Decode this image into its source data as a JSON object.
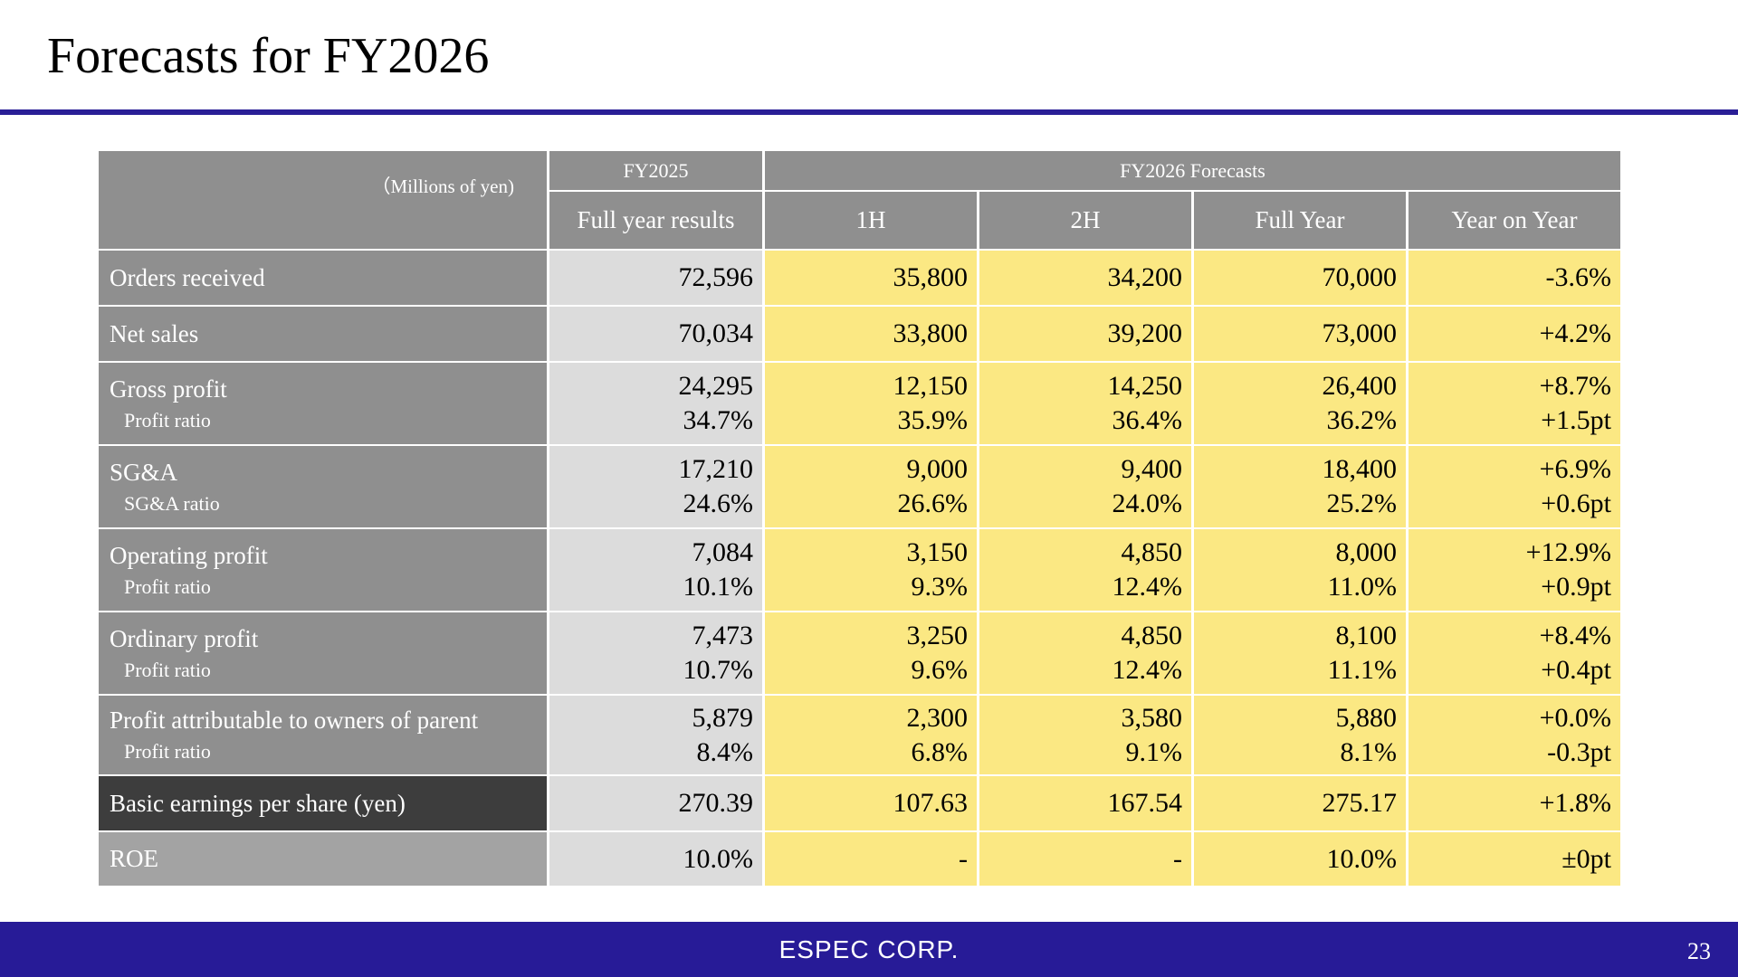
{
  "slide": {
    "title": "Forecasts for FY2026",
    "company": "ESPEC CORP.",
    "page_number": "23"
  },
  "table": {
    "unit_note": "（Millions of yen)",
    "group_headers": {
      "fy2025": "FY2025",
      "fy2026": "FY2026 Forecasts"
    },
    "column_headers": [
      "Full year results",
      "1H",
      "2H",
      "Full Year",
      "Year on Year"
    ],
    "rows": [
      {
        "label": "Orders received",
        "sub": "",
        "values": [
          "72,596",
          "35,800",
          "34,200",
          "70,000",
          "-3.6%"
        ],
        "sub_values": [
          "",
          "",
          "",
          "",
          ""
        ]
      },
      {
        "label": "Net sales",
        "sub": "",
        "values": [
          "70,034",
          "33,800",
          "39,200",
          "73,000",
          "+4.2%"
        ],
        "sub_values": [
          "",
          "",
          "",
          "",
          ""
        ]
      },
      {
        "label": "Gross profit",
        "sub": "Profit ratio",
        "values": [
          "24,295",
          "12,150",
          "14,250",
          "26,400",
          "+8.7%"
        ],
        "sub_values": [
          "34.7%",
          "35.9%",
          "36.4%",
          "36.2%",
          "+1.5pt"
        ]
      },
      {
        "label": "SG&A",
        "sub": "SG&A ratio",
        "values": [
          "17,210",
          "9,000",
          "9,400",
          "18,400",
          "+6.9%"
        ],
        "sub_values": [
          "24.6%",
          "26.6%",
          "24.0%",
          "25.2%",
          "+0.6pt"
        ]
      },
      {
        "label": "Operating profit",
        "sub": "Profit ratio",
        "values": [
          "7,084",
          "3,150",
          "4,850",
          "8,000",
          "+12.9%"
        ],
        "sub_values": [
          "10.1%",
          "9.3%",
          "12.4%",
          "11.0%",
          "+0.9pt"
        ]
      },
      {
        "label": "Ordinary profit",
        "sub": "Profit ratio",
        "values": [
          "7,473",
          "3,250",
          "4,850",
          "8,100",
          "+8.4%"
        ],
        "sub_values": [
          "10.7%",
          "9.6%",
          "12.4%",
          "11.1%",
          "+0.4pt"
        ]
      },
      {
        "label": "Profit attributable to owners of parent",
        "sub": "Profit ratio",
        "values": [
          "5,879",
          "2,300",
          "3,580",
          "5,880",
          "+0.0%"
        ],
        "sub_values": [
          "8.4%",
          "6.8%",
          "9.1%",
          "8.1%",
          "-0.3pt"
        ]
      },
      {
        "label": "Basic earnings per share (yen)",
        "sub": "",
        "values": [
          "270.39",
          "107.63",
          "167.54",
          "275.17",
          "+1.8%"
        ],
        "sub_values": [
          "",
          "",
          "",
          "",
          ""
        ]
      },
      {
        "label": "ROE",
        "sub": "",
        "values": [
          "10.0%",
          "-",
          "-",
          "10.0%",
          "±0pt"
        ],
        "sub_values": [
          "",
          "",
          "",
          "",
          ""
        ]
      }
    ]
  },
  "colors": {
    "accent": "#2a1f96",
    "header_gray": "#8f8f8f",
    "results_gray": "#dcdcdc",
    "forecast_yellow": "#fbe883",
    "eps_dark": "#3d3d3d"
  }
}
